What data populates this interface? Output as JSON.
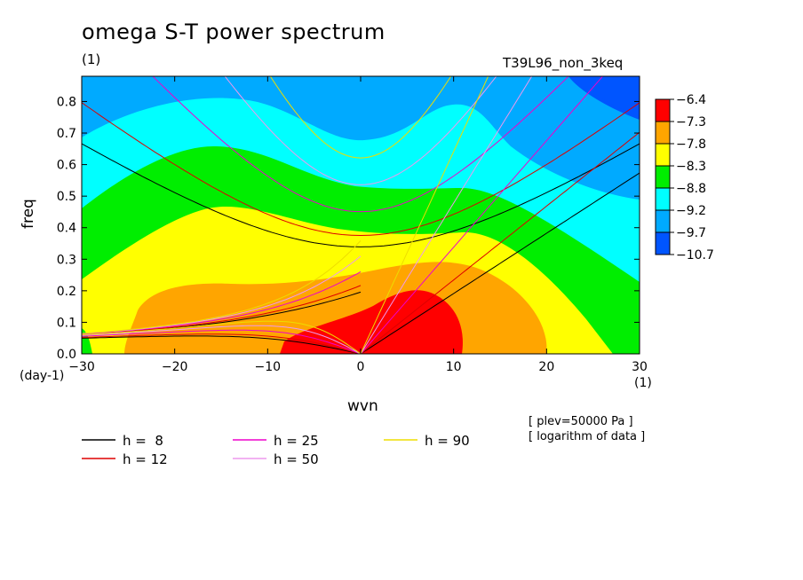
{
  "chart_data": {
    "type": "heatmap",
    "title": "omega S-T power spectrum",
    "subtitle_right": "T39L96_non_3keq",
    "xlabel": "wvn",
    "ylabel": "freq",
    "x_unit": "(1)",
    "y_unit_top": "(1)",
    "y_unit_bottom": "(day-1)",
    "xlim": [
      -30,
      30
    ],
    "ylim": [
      0,
      0.88
    ],
    "x_ticks": [
      -30,
      -20,
      -10,
      0,
      10,
      20,
      30
    ],
    "x_tick_labels": [
      "−30",
      "−20",
      "−10",
      "0",
      "10",
      "20",
      "30"
    ],
    "y_ticks": [
      0.0,
      0.1,
      0.2,
      0.3,
      0.4,
      0.5,
      0.6,
      0.7,
      0.8
    ],
    "y_tick_labels": [
      "0.0",
      "0.1",
      "0.2",
      "0.3",
      "0.4",
      "0.5",
      "0.6",
      "0.7",
      "0.8"
    ],
    "colorbar": {
      "labels": [
        "−6.4",
        "−7.3",
        "−7.8",
        "−8.3",
        "−8.8",
        "−9.2",
        "−9.7",
        "−10.7"
      ],
      "colors": [
        "#ff0000",
        "#ffa500",
        "#ffff00",
        "#00ee00",
        "#00ffff",
        "#00aaff",
        "#0055ff"
      ]
    },
    "levels_colors": {
      "red": "#ff0000",
      "orange": "#ffa500",
      "yellow": "#ffff00",
      "green": "#00ee00",
      "cyan": "#00ffff",
      "lightblue": "#00aaff",
      "blue": "#0055ff"
    },
    "dispersion_curves": [
      {
        "label": "h =  8",
        "h": 8,
        "color": "#000000"
      },
      {
        "label": "h = 12",
        "h": 12,
        "color": "#dd0000"
      },
      {
        "label": "h = 25",
        "h": 25,
        "color": "#ee00cc"
      },
      {
        "label": "h = 50",
        "h": 50,
        "color": "#ee99ee"
      },
      {
        "label": "h = 90",
        "h": 90,
        "color": "#eedd00"
      }
    ],
    "notes": [
      "[ plev=50000 Pa ]",
      "[ logarithm of data ]"
    ]
  }
}
